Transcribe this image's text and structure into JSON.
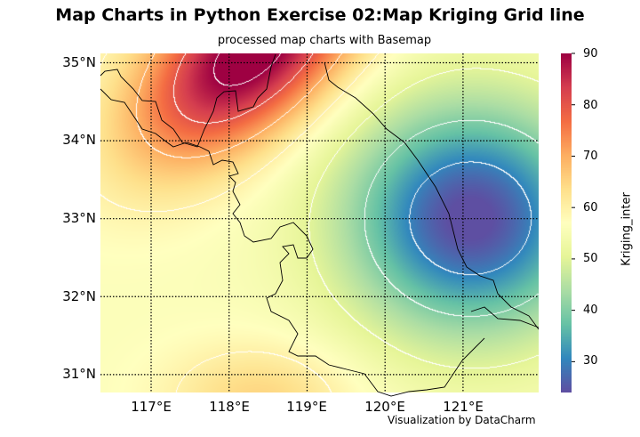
{
  "title": "Map Charts in Python Exercise 02:Map Kriging Grid line",
  "subtitle": "processed map charts with Basemap",
  "credit": "Visualization by DataCharm",
  "chart_data": {
    "type": "heatmap",
    "colormap": "Spectral_r",
    "lat_ticks": [
      "35°N",
      "34°N",
      "33°N",
      "32°N",
      "31°N"
    ],
    "lon_ticks": [
      "117°E",
      "118°E",
      "119°E",
      "120°E",
      "121°E"
    ],
    "lat_values": [
      35,
      34,
      33,
      32,
      31
    ],
    "lon_values": [
      117,
      118,
      119,
      120,
      121
    ],
    "xlim": [
      116.35,
      121.97
    ],
    "ylim": [
      30.77,
      35.12
    ],
    "grid": "dotted",
    "contour_color": "#ffffff",
    "contour_levels": [
      30,
      40,
      50,
      60,
      70,
      80,
      90
    ],
    "field": {
      "high": {
        "lon": 118.3,
        "lat": 35.15,
        "value": 92
      },
      "low": {
        "lon": 121.1,
        "lat": 33.0,
        "value": 24
      }
    },
    "colorbar": {
      "label": "Kriging_inter",
      "ticks": [
        "90",
        "80",
        "70",
        "60",
        "50",
        "40",
        "30"
      ],
      "tick_values": [
        90,
        80,
        70,
        60,
        50,
        40,
        30
      ],
      "range": [
        24,
        90
      ]
    }
  }
}
